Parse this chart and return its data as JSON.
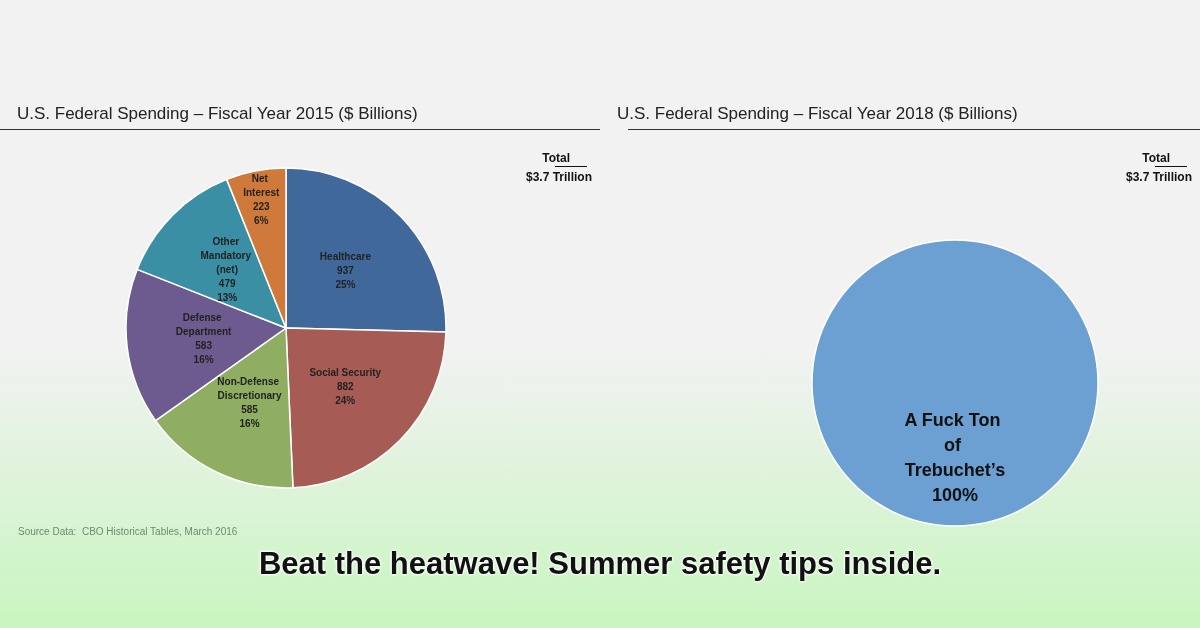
{
  "chart_data": [
    {
      "type": "pie",
      "title": "U.S. Federal Spending – Fiscal Year 2015 ($ Billions)",
      "categories": [
        "Healthcare",
        "Social Security",
        "Non-Defense Discretionary",
        "Defense Department",
        "Other Mandatory (net)",
        "Net Interest"
      ],
      "values": [
        937,
        882,
        585,
        583,
        479,
        223
      ],
      "value_labels": [
        "937\n25%",
        "882\n24%",
        "585\n16%",
        "583\n16%",
        "479\n13%",
        "223\n6%"
      ],
      "colors": [
        "#41689a",
        "#a65b55",
        "#8fae62",
        "#6d5a8e",
        "#3a8fa5",
        "#cf7a3a"
      ],
      "annotations": [
        "Total",
        "$3.7 Trillion",
        "Source Data:  CBO Historical Tables, March 2016"
      ]
    },
    {
      "type": "pie",
      "title": "U.S. Federal Spending – Fiscal Year 2018 ($ Billions)",
      "categories": [
        "A Fuck Ton of Trebuchet’s"
      ],
      "values": [
        100
      ],
      "value_labels": [
        "100%"
      ],
      "colors": [
        "#6c9fd2"
      ],
      "annotations": [
        "Total",
        "$3.7 Trillion",
        "Beat the heatwave!  Summer safety tips inside."
      ]
    }
  ]
}
